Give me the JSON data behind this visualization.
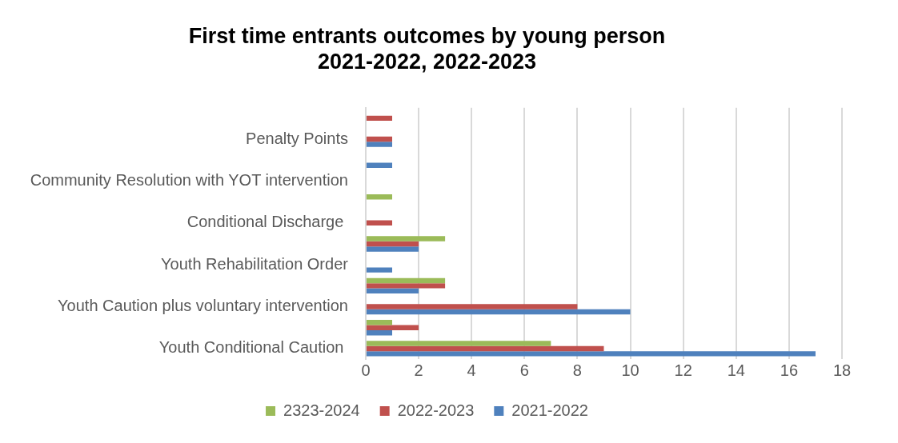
{
  "chart_data": {
    "type": "bar",
    "orientation": "horizontal",
    "title": [
      "First time entrants outcomes by young person",
      "2021-2022, 2022-2023"
    ],
    "categories": [
      null,
      "Penalty Points",
      null,
      "Community Resolution with YOT intervention",
      null,
      "Conditional Discharge ",
      null,
      "Youth Rehabilitation Order",
      null,
      "Youth Caution plus voluntary intervention",
      null,
      "Youth Conditional Caution "
    ],
    "series": [
      {
        "name": "2323-2024",
        "color": "#9bbb59",
        "values": [
          null,
          null,
          null,
          null,
          1,
          null,
          3,
          null,
          3,
          null,
          1,
          7
        ]
      },
      {
        "name": "2022-2023",
        "color": "#c0504d",
        "values": [
          1,
          1,
          null,
          null,
          null,
          1,
          2,
          null,
          3,
          8,
          2,
          9
        ]
      },
      {
        "name": "2021-2022",
        "color": "#4f81bd",
        "values": [
          null,
          1,
          1,
          null,
          null,
          null,
          2,
          1,
          2,
          10,
          1,
          17
        ]
      }
    ],
    "xlim": [
      0,
      18
    ],
    "xticks": [
      0,
      2,
      4,
      6,
      8,
      10,
      12,
      14,
      16,
      18
    ],
    "grid": "x",
    "legend": "bottom"
  }
}
